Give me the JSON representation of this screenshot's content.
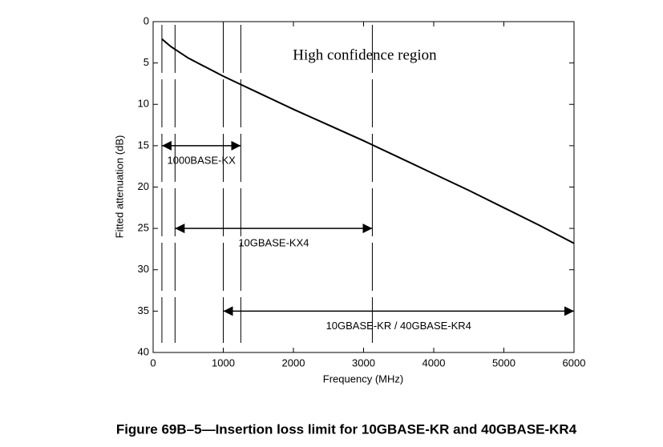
{
  "chart_data": {
    "type": "line",
    "caption": "Figure 69B–5—Insertion loss limit for 10GBASE-KR and 40GBASE-KR4",
    "xlabel": "Frequency (MHz)",
    "ylabel": "Fitted attenuation (dB)",
    "annotation": "High confidence region",
    "x": [
      125,
      250,
      500,
      750,
      1000,
      1250,
      1500,
      2000,
      2500,
      3000,
      3125,
      3500,
      4000,
      4500,
      5000,
      5500,
      6000
    ],
    "values": [
      2.1,
      3.0,
      4.4,
      5.5,
      6.6,
      7.6,
      8.6,
      10.6,
      12.5,
      14.4,
      14.9,
      16.4,
      18.4,
      20.4,
      22.5,
      24.6,
      26.8
    ],
    "color": "#000000",
    "xlim": [
      0,
      6000
    ],
    "xticks": [
      0,
      1000,
      2000,
      3000,
      4000,
      5000,
      6000
    ],
    "ylim": [
      0,
      40
    ],
    "yticks": [
      0,
      5,
      10,
      15,
      20,
      25,
      30,
      35,
      40
    ],
    "y_inverted": true,
    "markers": [
      125,
      312.5,
      1000,
      1250,
      3125
    ],
    "ranges": [
      {
        "label": "1000BASE-KX",
        "start": 125,
        "end": 1250
      },
      {
        "label": "10GBASE-KX4",
        "start": 312.5,
        "end": 3125
      },
      {
        "label": "10GBASE-KR / 40GBASE-KR4",
        "start": 1000,
        "end": 6000
      }
    ]
  }
}
